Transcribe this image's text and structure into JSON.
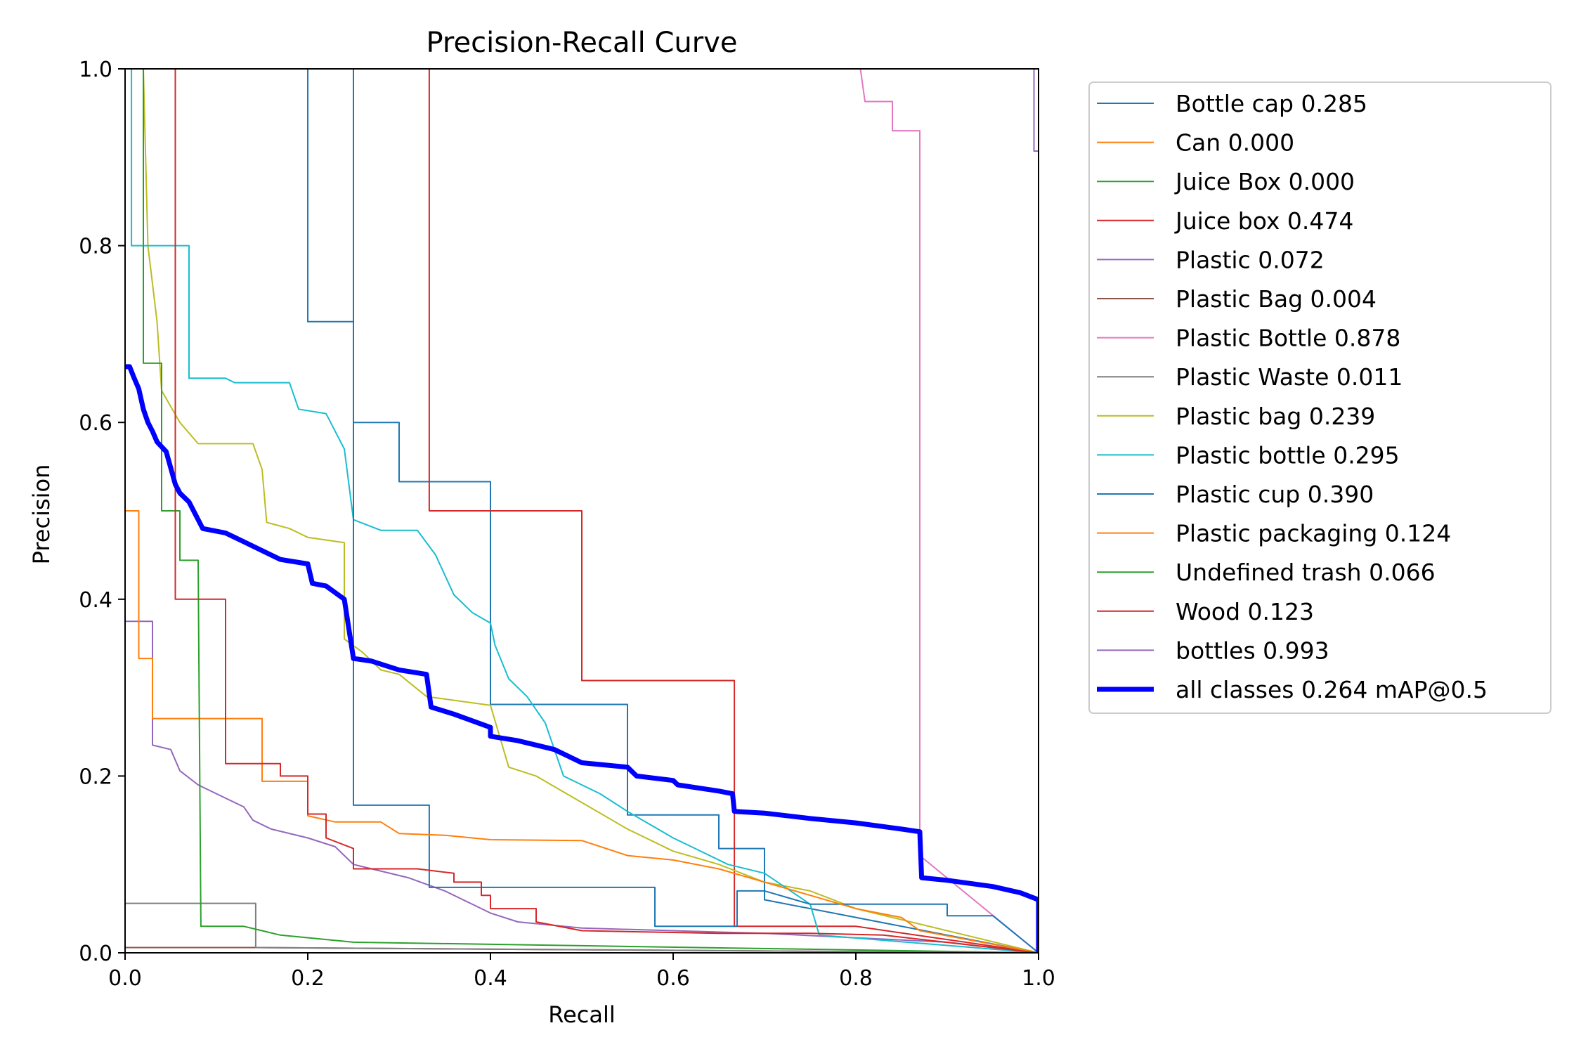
{
  "chart_data": {
    "type": "line",
    "title": "Precision-Recall Curve",
    "xlabel": "Recall",
    "ylabel": "Precision",
    "xlim": [
      0,
      1
    ],
    "ylim": [
      0,
      1
    ],
    "xticks": [
      "0.0",
      "0.2",
      "0.4",
      "0.6",
      "0.8",
      "1.0"
    ],
    "yticks": [
      "0.0",
      "0.2",
      "0.4",
      "0.6",
      "0.8",
      "1.0"
    ],
    "grid": false,
    "legend_position": "outside-right",
    "series": [
      {
        "name": "Bottle cap 0.285",
        "color": "#1f77b4",
        "width": 2,
        "points": [
          [
            0.2,
            1.0
          ],
          [
            0.2,
            0.714
          ],
          [
            0.25,
            0.714
          ],
          [
            0.25,
            0.6
          ],
          [
            0.3,
            0.6
          ],
          [
            0.3,
            0.533
          ],
          [
            0.4,
            0.533
          ],
          [
            0.4,
            0.281
          ],
          [
            0.55,
            0.281
          ],
          [
            0.55,
            0.156
          ],
          [
            0.65,
            0.156
          ],
          [
            0.65,
            0.118
          ],
          [
            0.7,
            0.118
          ],
          [
            0.7,
            0.06
          ],
          [
            1.0,
            0.0
          ]
        ]
      },
      {
        "name": "Can 0.000",
        "color": "#ff7f0e",
        "width": 2,
        "points": [
          [
            0.0,
            0.0
          ],
          [
            1.0,
            0.0
          ]
        ]
      },
      {
        "name": "Juice Box 0.000",
        "color": "#2ca02c",
        "width": 2,
        "points": [
          [
            0.0,
            0.0
          ],
          [
            1.0,
            0.0
          ]
        ]
      },
      {
        "name": "Juice box 0.474",
        "color": "#d62728",
        "width": 2,
        "points": [
          [
            0.333,
            1.0
          ],
          [
            0.333,
            0.5
          ],
          [
            0.5,
            0.5
          ],
          [
            0.5,
            0.308
          ],
          [
            0.667,
            0.308
          ],
          [
            0.667,
            0.03
          ],
          [
            0.8,
            0.03
          ],
          [
            1.0,
            0.0
          ]
        ]
      },
      {
        "name": "Plastic 0.072",
        "color": "#9467bd",
        "width": 2,
        "points": [
          [
            0.0,
            0.375
          ],
          [
            0.03,
            0.375
          ],
          [
            0.03,
            0.235
          ],
          [
            0.05,
            0.23
          ],
          [
            0.06,
            0.206
          ],
          [
            0.08,
            0.19
          ],
          [
            0.1,
            0.18
          ],
          [
            0.13,
            0.165
          ],
          [
            0.14,
            0.15
          ],
          [
            0.16,
            0.14
          ],
          [
            0.2,
            0.13
          ],
          [
            0.23,
            0.12
          ],
          [
            0.25,
            0.1
          ],
          [
            0.31,
            0.085
          ],
          [
            0.35,
            0.07
          ],
          [
            0.4,
            0.045
          ],
          [
            0.43,
            0.035
          ],
          [
            0.5,
            0.028
          ],
          [
            0.7,
            0.022
          ],
          [
            0.9,
            0.012
          ],
          [
            1.0,
            0.0
          ]
        ]
      },
      {
        "name": "Plastic Bag 0.004",
        "color": "#8c564b",
        "width": 2,
        "points": [
          [
            0.0,
            0.006
          ],
          [
            0.14,
            0.006
          ],
          [
            1.0,
            0.0
          ]
        ]
      },
      {
        "name": "Plastic Bottle 0.878",
        "color": "#e377c2",
        "width": 2,
        "points": [
          [
            0.805,
            1.0
          ],
          [
            0.81,
            0.963
          ],
          [
            0.84,
            0.963
          ],
          [
            0.84,
            0.93
          ],
          [
            0.87,
            0.93
          ],
          [
            0.87,
            0.11
          ],
          [
            1.0,
            0.0
          ]
        ]
      },
      {
        "name": "Plastic Waste 0.011",
        "color": "#7f7f7f",
        "width": 2,
        "points": [
          [
            0.0,
            0.056
          ],
          [
            0.143,
            0.056
          ],
          [
            0.143,
            0.006
          ],
          [
            1.0,
            0.0
          ]
        ]
      },
      {
        "name": "Plastic bag 0.239",
        "color": "#bcbd22",
        "width": 2,
        "points": [
          [
            0.02,
            1.0
          ],
          [
            0.025,
            0.8
          ],
          [
            0.035,
            0.714
          ],
          [
            0.04,
            0.636
          ],
          [
            0.06,
            0.6
          ],
          [
            0.08,
            0.576
          ],
          [
            0.14,
            0.576
          ],
          [
            0.15,
            0.547
          ],
          [
            0.155,
            0.487
          ],
          [
            0.18,
            0.48
          ],
          [
            0.2,
            0.47
          ],
          [
            0.24,
            0.464
          ],
          [
            0.24,
            0.355
          ],
          [
            0.26,
            0.34
          ],
          [
            0.28,
            0.32
          ],
          [
            0.3,
            0.315
          ],
          [
            0.33,
            0.29
          ],
          [
            0.4,
            0.28
          ],
          [
            0.42,
            0.21
          ],
          [
            0.45,
            0.2
          ],
          [
            0.5,
            0.17
          ],
          [
            0.55,
            0.14
          ],
          [
            0.6,
            0.115
          ],
          [
            0.65,
            0.1
          ],
          [
            0.7,
            0.08
          ],
          [
            0.75,
            0.07
          ],
          [
            0.8,
            0.05
          ],
          [
            1.0,
            0.0
          ]
        ]
      },
      {
        "name": "Plastic bottle 0.295",
        "color": "#17becf",
        "width": 2,
        "points": [
          [
            0.007,
            1.0
          ],
          [
            0.007,
            0.8
          ],
          [
            0.07,
            0.8
          ],
          [
            0.07,
            0.65
          ],
          [
            0.11,
            0.65
          ],
          [
            0.12,
            0.645
          ],
          [
            0.18,
            0.645
          ],
          [
            0.19,
            0.615
          ],
          [
            0.22,
            0.61
          ],
          [
            0.24,
            0.57
          ],
          [
            0.25,
            0.49
          ],
          [
            0.28,
            0.478
          ],
          [
            0.32,
            0.478
          ],
          [
            0.34,
            0.45
          ],
          [
            0.36,
            0.405
          ],
          [
            0.38,
            0.385
          ],
          [
            0.4,
            0.373
          ],
          [
            0.405,
            0.348
          ],
          [
            0.42,
            0.31
          ],
          [
            0.44,
            0.29
          ],
          [
            0.46,
            0.26
          ],
          [
            0.48,
            0.2
          ],
          [
            0.52,
            0.18
          ],
          [
            0.55,
            0.16
          ],
          [
            0.6,
            0.13
          ],
          [
            0.62,
            0.12
          ],
          [
            0.66,
            0.1
          ],
          [
            0.7,
            0.09
          ],
          [
            0.75,
            0.055
          ],
          [
            0.76,
            0.02
          ],
          [
            1.0,
            0.0
          ]
        ]
      },
      {
        "name": "Plastic cup 0.390",
        "color": "#1f77b4",
        "width": 2,
        "points": [
          [
            0.25,
            1.0
          ],
          [
            0.25,
            0.167
          ],
          [
            0.333,
            0.167
          ],
          [
            0.333,
            0.074
          ],
          [
            0.58,
            0.074
          ],
          [
            0.58,
            0.03
          ],
          [
            0.67,
            0.03
          ],
          [
            0.67,
            0.07
          ],
          [
            0.7,
            0.07
          ],
          [
            0.75,
            0.055
          ],
          [
            0.9,
            0.055
          ],
          [
            0.9,
            0.042
          ],
          [
            0.95,
            0.042
          ],
          [
            1.0,
            0.0
          ]
        ]
      },
      {
        "name": "Plastic packaging 0.124",
        "color": "#ff7f0e",
        "width": 2,
        "points": [
          [
            0.0,
            0.5
          ],
          [
            0.015,
            0.5
          ],
          [
            0.015,
            0.333
          ],
          [
            0.03,
            0.333
          ],
          [
            0.03,
            0.265
          ],
          [
            0.15,
            0.265
          ],
          [
            0.15,
            0.194
          ],
          [
            0.2,
            0.194
          ],
          [
            0.2,
            0.155
          ],
          [
            0.23,
            0.148
          ],
          [
            0.28,
            0.148
          ],
          [
            0.3,
            0.135
          ],
          [
            0.35,
            0.133
          ],
          [
            0.4,
            0.128
          ],
          [
            0.5,
            0.127
          ],
          [
            0.55,
            0.11
          ],
          [
            0.6,
            0.105
          ],
          [
            0.65,
            0.095
          ],
          [
            0.7,
            0.08
          ],
          [
            0.75,
            0.065
          ],
          [
            0.8,
            0.05
          ],
          [
            0.85,
            0.04
          ],
          [
            0.87,
            0.025
          ],
          [
            1.0,
            0.0
          ]
        ]
      },
      {
        "name": "Undefined trash 0.066",
        "color": "#2ca02c",
        "width": 2,
        "points": [
          [
            0.02,
            1.0
          ],
          [
            0.02,
            0.667
          ],
          [
            0.04,
            0.667
          ],
          [
            0.04,
            0.5
          ],
          [
            0.06,
            0.5
          ],
          [
            0.06,
            0.444
          ],
          [
            0.08,
            0.444
          ],
          [
            0.083,
            0.03
          ],
          [
            0.13,
            0.03
          ],
          [
            0.17,
            0.02
          ],
          [
            0.25,
            0.012
          ],
          [
            0.5,
            0.008
          ],
          [
            1.0,
            0.0
          ]
        ]
      },
      {
        "name": "Wood 0.123",
        "color": "#d62728",
        "width": 2,
        "points": [
          [
            0.055,
            1.0
          ],
          [
            0.055,
            0.4
          ],
          [
            0.11,
            0.4
          ],
          [
            0.11,
            0.214
          ],
          [
            0.17,
            0.214
          ],
          [
            0.17,
            0.2
          ],
          [
            0.2,
            0.2
          ],
          [
            0.2,
            0.157
          ],
          [
            0.22,
            0.157
          ],
          [
            0.22,
            0.13
          ],
          [
            0.25,
            0.118
          ],
          [
            0.25,
            0.095
          ],
          [
            0.32,
            0.095
          ],
          [
            0.36,
            0.09
          ],
          [
            0.36,
            0.08
          ],
          [
            0.39,
            0.08
          ],
          [
            0.39,
            0.065
          ],
          [
            0.4,
            0.065
          ],
          [
            0.4,
            0.05
          ],
          [
            0.45,
            0.05
          ],
          [
            0.45,
            0.035
          ],
          [
            0.5,
            0.025
          ],
          [
            0.65,
            0.022
          ],
          [
            0.75,
            0.022
          ],
          [
            0.83,
            0.02
          ],
          [
            1.0,
            0.0
          ]
        ]
      },
      {
        "name": "bottles 0.993",
        "color": "#9467bd",
        "width": 2,
        "points": [
          [
            0.995,
            1.0
          ],
          [
            0.995,
            0.907
          ],
          [
            1.0,
            0.907
          ],
          [
            1.0,
            0.0
          ]
        ]
      },
      {
        "name": "all classes 0.264 mAP@0.5",
        "color": "#0000ff",
        "width": 7,
        "points": [
          [
            0.0,
            0.663
          ],
          [
            0.005,
            0.663
          ],
          [
            0.01,
            0.65
          ],
          [
            0.015,
            0.638
          ],
          [
            0.02,
            0.615
          ],
          [
            0.025,
            0.6
          ],
          [
            0.03,
            0.59
          ],
          [
            0.035,
            0.578
          ],
          [
            0.045,
            0.567
          ],
          [
            0.055,
            0.53
          ],
          [
            0.06,
            0.52
          ],
          [
            0.07,
            0.51
          ],
          [
            0.085,
            0.48
          ],
          [
            0.11,
            0.475
          ],
          [
            0.13,
            0.465
          ],
          [
            0.15,
            0.455
          ],
          [
            0.17,
            0.445
          ],
          [
            0.2,
            0.44
          ],
          [
            0.205,
            0.418
          ],
          [
            0.22,
            0.415
          ],
          [
            0.24,
            0.4
          ],
          [
            0.25,
            0.333
          ],
          [
            0.27,
            0.33
          ],
          [
            0.3,
            0.32
          ],
          [
            0.33,
            0.315
          ],
          [
            0.335,
            0.278
          ],
          [
            0.36,
            0.27
          ],
          [
            0.4,
            0.255
          ],
          [
            0.4,
            0.245
          ],
          [
            0.43,
            0.24
          ],
          [
            0.47,
            0.23
          ],
          [
            0.5,
            0.215
          ],
          [
            0.55,
            0.21
          ],
          [
            0.56,
            0.2
          ],
          [
            0.6,
            0.195
          ],
          [
            0.605,
            0.19
          ],
          [
            0.65,
            0.183
          ],
          [
            0.665,
            0.18
          ],
          [
            0.667,
            0.16
          ],
          [
            0.7,
            0.158
          ],
          [
            0.75,
            0.152
          ],
          [
            0.8,
            0.147
          ],
          [
            0.85,
            0.14
          ],
          [
            0.87,
            0.137
          ],
          [
            0.872,
            0.085
          ],
          [
            0.9,
            0.082
          ],
          [
            0.95,
            0.075
          ],
          [
            0.98,
            0.068
          ],
          [
            1.0,
            0.06
          ],
          [
            1.0,
            0.0
          ]
        ]
      }
    ]
  }
}
